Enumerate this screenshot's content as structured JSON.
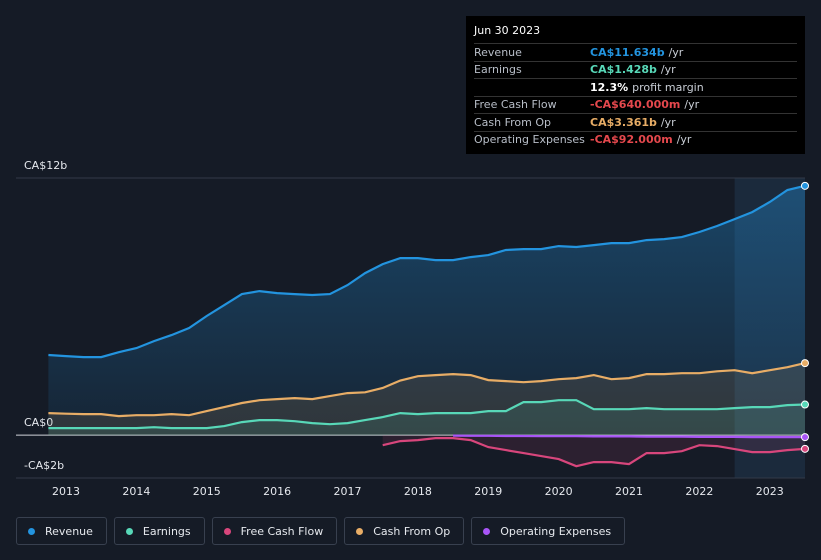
{
  "chart_data": {
    "type": "line",
    "x": [
      2012.75,
      2013.0,
      2013.25,
      2013.5,
      2013.75,
      2014.0,
      2014.25,
      2014.5,
      2014.75,
      2015.0,
      2015.25,
      2015.5,
      2015.75,
      2016.0,
      2016.25,
      2016.5,
      2016.75,
      2017.0,
      2017.25,
      2017.5,
      2017.75,
      2018.0,
      2018.25,
      2018.5,
      2018.75,
      2019.0,
      2019.25,
      2019.5,
      2019.75,
      2020.0,
      2020.25,
      2020.5,
      2020.75,
      2021.0,
      2021.25,
      2021.5,
      2021.75,
      2022.0,
      2022.25,
      2022.5,
      2022.75,
      2023.0,
      2023.25,
      2023.5
    ],
    "series": [
      {
        "name": "Revenue",
        "color": "#2394df",
        "values": [
          3.74,
          3.69,
          3.64,
          3.64,
          3.87,
          4.06,
          4.39,
          4.67,
          5.0,
          5.56,
          6.07,
          6.58,
          6.72,
          6.63,
          6.58,
          6.54,
          6.58,
          7.0,
          7.56,
          7.98,
          8.26,
          8.26,
          8.17,
          8.17,
          8.31,
          8.4,
          8.64,
          8.68,
          8.68,
          8.82,
          8.78,
          8.87,
          8.96,
          8.96,
          9.1,
          9.15,
          9.24,
          9.48,
          9.76,
          10.08,
          10.41,
          10.88,
          11.44,
          11.634
        ]
      },
      {
        "name": "Earnings",
        "color": "#58d8b8",
        "values": [
          0.33,
          0.33,
          0.33,
          0.33,
          0.33,
          0.33,
          0.37,
          0.33,
          0.33,
          0.33,
          0.42,
          0.61,
          0.7,
          0.7,
          0.65,
          0.56,
          0.51,
          0.56,
          0.7,
          0.84,
          1.03,
          0.98,
          1.03,
          1.03,
          1.03,
          1.12,
          1.12,
          1.54,
          1.54,
          1.63,
          1.63,
          1.21,
          1.21,
          1.21,
          1.26,
          1.21,
          1.21,
          1.21,
          1.21,
          1.26,
          1.31,
          1.31,
          1.4,
          1.428
        ]
      },
      {
        "name": "Free Cash Flow",
        "color": "#d8467c",
        "values": [
          null,
          null,
          null,
          null,
          null,
          null,
          null,
          null,
          null,
          null,
          null,
          null,
          null,
          null,
          null,
          null,
          null,
          null,
          null,
          -0.47,
          -0.28,
          -0.23,
          -0.14,
          -0.14,
          -0.23,
          -0.56,
          -0.7,
          -0.84,
          -0.98,
          -1.12,
          -1.45,
          -1.26,
          -1.26,
          -1.35,
          -0.84,
          -0.84,
          -0.75,
          -0.47,
          -0.51,
          -0.65,
          -0.79,
          -0.79,
          -0.7,
          -0.64
        ]
      },
      {
        "name": "Cash From Op",
        "color": "#e8ad66",
        "values": [
          1.03,
          1.0,
          0.98,
          0.98,
          0.89,
          0.93,
          0.93,
          0.98,
          0.93,
          1.12,
          1.31,
          1.5,
          1.63,
          1.68,
          1.73,
          1.68,
          1.82,
          1.96,
          2.0,
          2.2,
          2.55,
          2.75,
          2.8,
          2.85,
          2.8,
          2.57,
          2.52,
          2.47,
          2.52,
          2.61,
          2.66,
          2.8,
          2.61,
          2.66,
          2.85,
          2.85,
          2.89,
          2.89,
          2.98,
          3.03,
          2.89,
          3.03,
          3.17,
          3.361
        ]
      },
      {
        "name": "Operating Expenses",
        "color": "#a855f7",
        "values": [
          null,
          null,
          null,
          null,
          null,
          null,
          null,
          null,
          null,
          null,
          null,
          null,
          null,
          null,
          null,
          null,
          null,
          null,
          null,
          null,
          null,
          null,
          null,
          -0.02,
          -0.03,
          -0.03,
          -0.04,
          -0.04,
          -0.05,
          -0.05,
          -0.05,
          -0.06,
          -0.06,
          -0.06,
          -0.07,
          -0.07,
          -0.07,
          -0.08,
          -0.08,
          -0.08,
          -0.09,
          -0.09,
          -0.09,
          -0.092
        ]
      }
    ],
    "xlim": [
      2012.29,
      2023.5
    ],
    "xticks": [
      2013,
      2014,
      2015,
      2016,
      2017,
      2018,
      2019,
      2020,
      2021,
      2022,
      2023
    ],
    "ylim": [
      -2,
      12
    ],
    "yticks": [
      {
        "value": -2,
        "label": "-CA$2b"
      },
      {
        "value": 0,
        "label": "CA$0"
      },
      {
        "value": 12,
        "label": "CA$12b"
      }
    ],
    "grid": true,
    "highlight_xlim": [
      2022.5,
      2023.5
    ],
    "tooltip": {
      "date": "Jun 30 2023",
      "rows": [
        {
          "label": "Revenue",
          "value": "CA$11.634b",
          "unit": "/yr",
          "color": "#2394df"
        },
        {
          "label": "Earnings",
          "value": "CA$1.428b",
          "unit": "/yr",
          "color": "#58d8b8"
        },
        {
          "value": "12.3%",
          "unit": "profit margin",
          "color": "#ffffff"
        },
        {
          "label": "Free Cash Flow",
          "value": "-CA$640.000m",
          "unit": "/yr",
          "color": "#e5484d"
        },
        {
          "label": "Cash From Op",
          "value": "CA$3.361b",
          "unit": "/yr",
          "color": "#e8ad66"
        },
        {
          "label": "Operating Expenses",
          "value": "-CA$92.000m",
          "unit": "/yr",
          "color": "#e5484d"
        }
      ]
    }
  }
}
